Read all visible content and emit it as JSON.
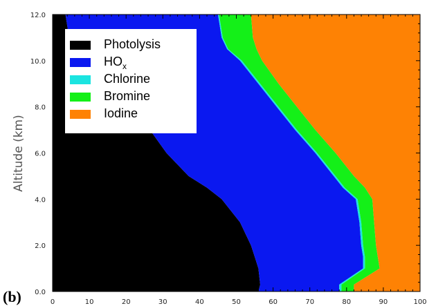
{
  "chart_data": {
    "type": "area",
    "stacked": true,
    "orientation": "horizontal",
    "panel_label": "(b)",
    "xlabel": "",
    "ylabel": "Altitude  (km)",
    "xlim": [
      0,
      100
    ],
    "ylim": [
      0,
      12
    ],
    "xticks": [
      "0",
      "10",
      "20",
      "30",
      "40",
      "50",
      "60",
      "70",
      "80",
      "90",
      "100"
    ],
    "yticks": [
      "0.0",
      "2.0",
      "4.0",
      "6.0",
      "8.0",
      "10.0",
      "12.0"
    ],
    "y": [
      0.0,
      0.3,
      1.0,
      1.5,
      2.0,
      3.0,
      4.0,
      4.5,
      5.0,
      6.0,
      7.0,
      8.0,
      9.0,
      10.0,
      10.5,
      11.0,
      12.0
    ],
    "series": [
      {
        "name": "Photolysis",
        "color": "#000000",
        "values": [
          0,
          0,
          0,
          0,
          0,
          0,
          0,
          0,
          0,
          0,
          0,
          0,
          0,
          0,
          0,
          0,
          0
        ]
      },
      {
        "name": "HOx",
        "color": "#0a18f0",
        "values": [
          56.0,
          56.5,
          56.0,
          55.0,
          54.0,
          51.0,
          46.0,
          42.0,
          37.0,
          31.0,
          26.5,
          20.0,
          14.0,
          8.0,
          5.5,
          4.5,
          3.5
        ]
      },
      {
        "name": "Chlorine",
        "color": "#1be4e0",
        "values": [
          78.0,
          78.0,
          84.5,
          84.5,
          84.0,
          83.5,
          82.5,
          79.0,
          76.5,
          71.5,
          66.0,
          61.0,
          56.0,
          51.0,
          47.5,
          46.0,
          45.0
        ]
      },
      {
        "name": "Bromine",
        "color": "#14f018",
        "values": [
          78.6,
          78.6,
          85.0,
          85.0,
          84.5,
          84.0,
          83.0,
          79.5,
          77.0,
          72.0,
          66.5,
          61.5,
          56.5,
          51.5,
          47.8,
          46.3,
          45.3
        ]
      },
      {
        "name": "Iodine",
        "color": "#fe8204",
        "values": [
          82.0,
          82.0,
          89.0,
          88.5,
          88.0,
          87.5,
          87.0,
          85.0,
          82.0,
          77.0,
          71.5,
          66.5,
          61.5,
          57.0,
          55.5,
          54.5,
          54.0
        ]
      }
    ],
    "legend": {
      "placement": "top-left",
      "entries": [
        {
          "label": "Photolysis",
          "color": "#000000"
        },
        {
          "label": "HO",
          "sub": "x",
          "color": "#0a18f0"
        },
        {
          "label": "Chlorine",
          "color": "#1be4e0"
        },
        {
          "label": "Bromine",
          "color": "#14f018"
        },
        {
          "label": "Iodine",
          "color": "#fe8204"
        }
      ]
    },
    "grid": false
  }
}
